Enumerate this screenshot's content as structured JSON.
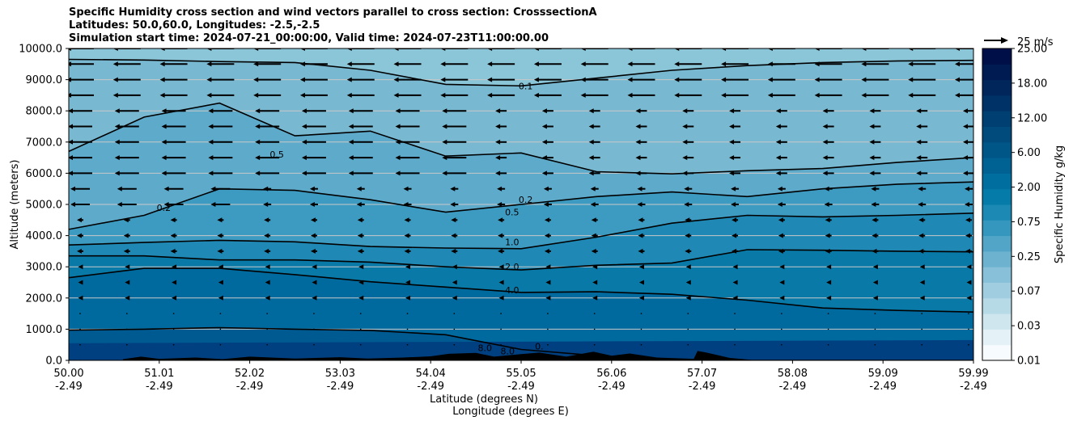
{
  "chart_data": {
    "type": "contour",
    "title_lines": [
      "Specific Humidity cross section and wind vectors parallel to cross section: CrosssectionA",
      "Latitudes: 50.0,60.0, Longitudes: -2.5,-2.5",
      "Simulation start time: 2024-07-21_00:00:00, Valid time: 2024-07-23T11:00:00.00"
    ],
    "ylabel": "Altitude (meters)",
    "xlabel_lat": "Latitude (degrees N)",
    "xlabel_lon": "Longitude (degrees E)",
    "ylim": [
      0,
      10000
    ],
    "xlim": [
      50.0,
      59.99
    ],
    "y_ticks": [
      "0.0",
      "1000.0",
      "2000.0",
      "3000.0",
      "4000.0",
      "5000.0",
      "6000.0",
      "7000.0",
      "8000.0",
      "9000.0",
      "10000.0"
    ],
    "x_ticks": [
      {
        "lat": "50.00",
        "lon": "-2.49"
      },
      {
        "lat": "51.01",
        "lon": "-2.49"
      },
      {
        "lat": "52.02",
        "lon": "-2.49"
      },
      {
        "lat": "53.03",
        "lon": "-2.49"
      },
      {
        "lat": "54.04",
        "lon": "-2.49"
      },
      {
        "lat": "55.05",
        "lon": "-2.49"
      },
      {
        "lat": "56.06",
        "lon": "-2.49"
      },
      {
        "lat": "57.07",
        "lon": "-2.49"
      },
      {
        "lat": "58.08",
        "lon": "-2.49"
      },
      {
        "lat": "59.09",
        "lon": "-2.49"
      },
      {
        "lat": "59.99",
        "lon": "-2.49"
      }
    ],
    "colorbar": {
      "label": "Specific Humidity g/kg",
      "tick_labels": [
        "0.01",
        "0.03",
        "0.07",
        "0.25",
        "0.75",
        "2.00",
        "6.00",
        "12.00",
        "18.00",
        "25.00"
      ]
    },
    "quiver_key": "25 m/s",
    "contour_levels": [
      {
        "value": 0.1,
        "label": "0.1",
        "altitudes_m": [
          9650,
          9630,
          9580,
          9550,
          9300,
          8850,
          8800,
          9050,
          9300,
          9450,
          9550,
          9600,
          9620
        ]
      },
      {
        "value": 0.2,
        "label": "0.2",
        "altitudes_m": [
          6700,
          7800,
          8250,
          7200,
          7350,
          6550,
          6650,
          6050,
          5980,
          6080,
          6150,
          6350,
          6500
        ]
      },
      {
        "value": 0.5,
        "label": "0.5",
        "altitudes_m": [
          4200,
          4650,
          5500,
          5450,
          5150,
          4750,
          5000,
          5250,
          5400,
          5250,
          5500,
          5650,
          5720
        ]
      },
      {
        "value": 1.0,
        "label": "1.0",
        "altitudes_m": [
          3700,
          3780,
          3850,
          3800,
          3650,
          3600,
          3580,
          3950,
          4400,
          4650,
          4600,
          4650,
          4720
        ]
      },
      {
        "value": 2.0,
        "label": "2.0",
        "altitudes_m": [
          3350,
          3350,
          3220,
          3220,
          3150,
          3000,
          2900,
          3050,
          3120,
          3550,
          3530,
          3500,
          3480
        ]
      },
      {
        "value": 4.0,
        "label": "4.0",
        "altitudes_m": [
          2650,
          2950,
          2950,
          2750,
          2520,
          2350,
          2180,
          2200,
          2120,
          1930,
          1680,
          1600,
          1550
        ]
      },
      {
        "value": 8.0,
        "label": "8.0",
        "altitudes_m": [
          970,
          1000,
          1050,
          1000,
          960,
          820,
          350,
          150,
          0,
          0,
          0,
          0,
          0
        ]
      }
    ],
    "contour_label_texts": [
      "0.1",
      "0.2",
      "0.5",
      "1.0",
      "2.0",
      "4.0",
      "8.0",
      "8.0",
      "0.",
      "0.5",
      "0.2"
    ]
  }
}
